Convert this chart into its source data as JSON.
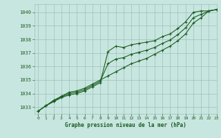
{
  "title": "Graphe pression niveau de la mer (hPa)",
  "background_color": "#c8e6e0",
  "grid_color": "#9dbfb8",
  "line_color": "#1a5c20",
  "xlim": [
    -0.5,
    23
  ],
  "ylim": [
    1032.5,
    1040.6
  ],
  "yticks": [
    1033,
    1034,
    1035,
    1036,
    1037,
    1038,
    1039,
    1040
  ],
  "xticks": [
    0,
    1,
    2,
    3,
    4,
    5,
    6,
    7,
    8,
    9,
    10,
    11,
    12,
    13,
    14,
    15,
    16,
    17,
    18,
    19,
    20,
    21,
    22,
    23
  ],
  "series1_x": [
    0,
    1,
    2,
    3,
    4,
    5,
    6,
    7,
    8,
    9,
    10,
    11,
    12,
    13,
    14,
    15,
    16,
    17,
    18,
    19,
    20,
    21,
    22,
    23
  ],
  "series1_y": [
    1032.7,
    1033.1,
    1033.4,
    1033.7,
    1033.9,
    1034.0,
    1034.2,
    1034.5,
    1034.8,
    1037.1,
    1037.5,
    1037.4,
    1037.6,
    1037.7,
    1037.8,
    1037.9,
    1038.2,
    1038.4,
    1038.8,
    1039.3,
    1040.0,
    1040.1,
    1040.1,
    1040.2
  ],
  "series2_x": [
    0,
    1,
    2,
    3,
    4,
    5,
    6,
    7,
    8,
    9,
    10,
    11,
    12,
    13,
    14,
    15,
    16,
    17,
    18,
    19,
    20,
    21,
    22,
    23
  ],
  "series2_y": [
    1032.7,
    1033.1,
    1033.5,
    1033.8,
    1034.1,
    1034.2,
    1034.4,
    1034.7,
    1035.0,
    1035.3,
    1035.6,
    1035.9,
    1036.2,
    1036.4,
    1036.6,
    1036.9,
    1037.2,
    1037.5,
    1037.9,
    1038.4,
    1039.2,
    1039.6,
    1040.1,
    1040.2
  ],
  "series3_x": [
    0,
    1,
    2,
    3,
    4,
    5,
    6,
    7,
    8,
    9,
    10,
    11,
    12,
    13,
    14,
    15,
    16,
    17,
    18,
    19,
    20,
    21,
    22,
    23
  ],
  "series3_y": [
    1032.7,
    1033.1,
    1033.45,
    1033.75,
    1034.0,
    1034.1,
    1034.3,
    1034.6,
    1034.9,
    1036.2,
    1036.55,
    1036.65,
    1036.9,
    1037.05,
    1037.2,
    1037.4,
    1037.7,
    1037.95,
    1038.35,
    1038.85,
    1039.6,
    1039.85,
    1040.1,
    1040.2
  ]
}
